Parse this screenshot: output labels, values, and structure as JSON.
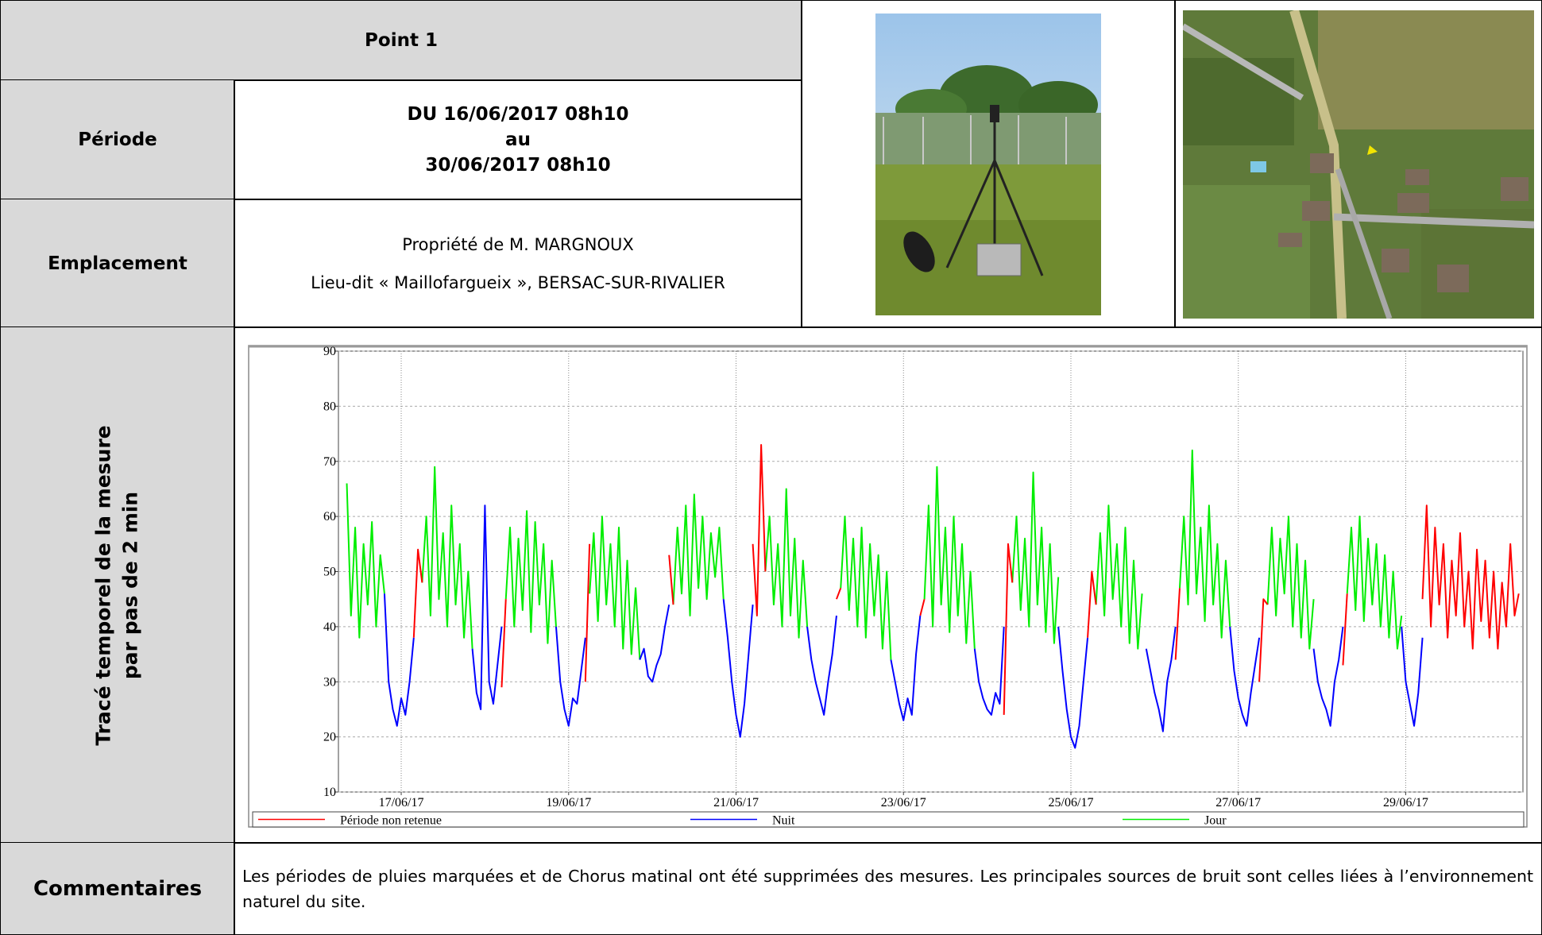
{
  "title": "Point 1",
  "period": {
    "label": "Période",
    "lines": [
      "DU 16/06/2017 08h10",
      "au",
      "30/06/2017 08h10"
    ]
  },
  "location": {
    "label": "Emplacement",
    "lines": [
      "Propriété de M. MARGNOUX",
      "Lieu-dit « Maillofargueix », BERSAC-SUR-RIVALIER"
    ]
  },
  "chart_label": {
    "lines": [
      "Tracé temporel de la mesure",
      "par pas de 2 min"
    ]
  },
  "chart_data": {
    "type": "line",
    "xlim": [
      0.25,
      14.4
    ],
    "xticks": [
      {
        "value": 1,
        "label": "17/06/17"
      },
      {
        "value": 3,
        "label": "19/06/17"
      },
      {
        "value": 5,
        "label": "21/06/17"
      },
      {
        "value": 7,
        "label": "23/06/17"
      },
      {
        "value": 9,
        "label": "25/06/17"
      },
      {
        "value": 11,
        "label": "27/06/17"
      },
      {
        "value": 13,
        "label": "29/06/17"
      }
    ],
    "ylim": [
      10,
      90
    ],
    "yticks": [
      10,
      20,
      30,
      40,
      50,
      60,
      70,
      80,
      90
    ],
    "grid": true,
    "legend": "bottom",
    "series": [
      {
        "name": "Période non retenue",
        "color": "#ff0000",
        "x": [
          1.15,
          1.2,
          1.25,
          null,
          2.2,
          2.25,
          null,
          3.2,
          3.25,
          null,
          4.2,
          4.25,
          null,
          5.2,
          5.25,
          5.3,
          5.35,
          null,
          6.2,
          6.25,
          null,
          7.2,
          7.25,
          null,
          8.2,
          8.25,
          8.3,
          null,
          9.2,
          9.25,
          9.3,
          null,
          10.25,
          10.3,
          null,
          11.25,
          11.3,
          11.35,
          null,
          12.25,
          12.3,
          null,
          13.2,
          13.25,
          13.3,
          13.35,
          13.4,
          13.45,
          13.5,
          13.55,
          13.6,
          13.65,
          13.7,
          13.75,
          13.8,
          13.85,
          13.9,
          13.95,
          14,
          14.05,
          14.1,
          14.15,
          14.2,
          14.25,
          14.3,
          14.35
        ],
        "values": [
          38,
          54,
          48,
          null,
          29,
          45,
          null,
          30,
          55,
          null,
          53,
          44,
          null,
          55,
          42,
          73,
          50,
          null,
          45,
          47,
          null,
          42,
          45,
          null,
          24,
          55,
          48,
          null,
          38,
          50,
          44,
          null,
          34,
          47,
          null,
          30,
          45,
          44,
          null,
          33,
          46,
          null,
          45,
          62,
          40,
          58,
          44,
          55,
          38,
          52,
          42,
          57,
          40,
          50,
          36,
          54,
          41,
          52,
          38,
          50,
          36,
          48,
          40,
          55,
          42,
          46
        ]
      },
      {
        "name": "Nuit",
        "color": "#0000ff",
        "x": [
          0.8,
          0.85,
          0.9,
          0.95,
          1,
          1.05,
          1.1,
          1.15,
          null,
          1.85,
          1.9,
          1.95,
          2,
          2.05,
          2.1,
          2.15,
          2.2,
          null,
          2.85,
          2.9,
          2.95,
          3,
          3.05,
          3.1,
          3.15,
          3.2,
          null,
          3.85,
          3.9,
          3.95,
          4,
          4.05,
          4.1,
          4.15,
          4.2,
          null,
          4.85,
          4.9,
          4.95,
          5,
          5.05,
          5.1,
          5.15,
          5.2,
          null,
          5.85,
          5.9,
          5.95,
          6,
          6.05,
          6.1,
          6.15,
          6.2,
          null,
          6.85,
          6.9,
          6.95,
          7,
          7.05,
          7.1,
          7.15,
          7.2,
          null,
          7.85,
          7.9,
          7.95,
          8,
          8.05,
          8.1,
          8.15,
          8.2,
          null,
          8.85,
          8.9,
          8.95,
          9,
          9.05,
          9.1,
          9.15,
          9.2,
          null,
          9.9,
          9.95,
          10,
          10.05,
          10.1,
          10.15,
          10.2,
          10.25,
          null,
          10.9,
          10.95,
          11,
          11.05,
          11.1,
          11.15,
          11.2,
          11.25,
          null,
          11.9,
          11.95,
          12,
          12.05,
          12.1,
          12.15,
          12.2,
          12.25,
          null,
          12.95,
          13,
          13.05,
          13.1,
          13.15,
          13.2
        ],
        "values": [
          46,
          30,
          25,
          22,
          27,
          24,
          30,
          38,
          null,
          36,
          28,
          25,
          62,
          30,
          26,
          33,
          40,
          null,
          40,
          30,
          25,
          22,
          27,
          26,
          32,
          38,
          null,
          34,
          36,
          31,
          30,
          33,
          35,
          40,
          44,
          null,
          45,
          38,
          30,
          24,
          20,
          26,
          35,
          44,
          null,
          40,
          34,
          30,
          27,
          24,
          30,
          35,
          42,
          null,
          34,
          30,
          26,
          23,
          27,
          24,
          35,
          42,
          null,
          36,
          30,
          27,
          25,
          24,
          28,
          26,
          40,
          null,
          40,
          32,
          25,
          20,
          18,
          22,
          30,
          38,
          null,
          36,
          32,
          28,
          25,
          21,
          30,
          34,
          40,
          null,
          40,
          32,
          27,
          24,
          22,
          28,
          33,
          38,
          null,
          36,
          30,
          27,
          25,
          22,
          30,
          34,
          40,
          null,
          40,
          30,
          26,
          22,
          28,
          38
        ]
      },
      {
        "name": "Jour",
        "color": "#00ee00",
        "x": [
          0.35,
          0.4,
          0.45,
          0.5,
          0.55,
          0.6,
          0.65,
          0.7,
          0.75,
          0.8,
          null,
          1.25,
          1.3,
          1.35,
          1.4,
          1.45,
          1.5,
          1.55,
          1.6,
          1.65,
          1.7,
          1.75,
          1.8,
          1.85,
          null,
          2.25,
          2.3,
          2.35,
          2.4,
          2.45,
          2.5,
          2.55,
          2.6,
          2.65,
          2.7,
          2.75,
          2.8,
          2.85,
          null,
          3.25,
          3.3,
          3.35,
          3.4,
          3.45,
          3.5,
          3.55,
          3.6,
          3.65,
          3.7,
          3.75,
          3.8,
          3.85,
          null,
          4.25,
          4.3,
          4.35,
          4.4,
          4.45,
          4.5,
          4.55,
          4.6,
          4.65,
          4.7,
          4.75,
          4.8,
          4.85,
          null,
          5.35,
          5.4,
          5.45,
          5.5,
          5.55,
          5.6,
          5.65,
          5.7,
          5.75,
          5.8,
          5.85,
          null,
          6.25,
          6.3,
          6.35,
          6.4,
          6.45,
          6.5,
          6.55,
          6.6,
          6.65,
          6.7,
          6.75,
          6.8,
          6.85,
          null,
          7.25,
          7.3,
          7.35,
          7.4,
          7.45,
          7.5,
          7.55,
          7.6,
          7.65,
          7.7,
          7.75,
          7.8,
          7.85,
          null,
          8.3,
          8.35,
          8.4,
          8.45,
          8.5,
          8.55,
          8.6,
          8.65,
          8.7,
          8.75,
          8.8,
          8.85,
          null,
          9.3,
          9.35,
          9.4,
          9.45,
          9.5,
          9.55,
          9.6,
          9.65,
          9.7,
          9.75,
          9.8,
          9.85,
          null,
          10.3,
          10.35,
          10.4,
          10.45,
          10.5,
          10.55,
          10.6,
          10.65,
          10.7,
          10.75,
          10.8,
          10.85,
          10.9,
          null,
          11.35,
          11.4,
          11.45,
          11.5,
          11.55,
          11.6,
          11.65,
          11.7,
          11.75,
          11.8,
          11.85,
          11.9,
          null,
          12.3,
          12.35,
          12.4,
          12.45,
          12.5,
          12.55,
          12.6,
          12.65,
          12.7,
          12.75,
          12.8,
          12.85,
          12.9,
          12.95
        ],
        "values": [
          66,
          42,
          58,
          38,
          55,
          44,
          59,
          40,
          53,
          46,
          null,
          48,
          60,
          42,
          69,
          45,
          57,
          40,
          62,
          44,
          55,
          38,
          50,
          36,
          null,
          45,
          58,
          40,
          56,
          43,
          61,
          39,
          59,
          44,
          55,
          37,
          52,
          40,
          null,
          46,
          57,
          41,
          60,
          44,
          55,
          40,
          58,
          36,
          52,
          35,
          47,
          34,
          null,
          44,
          58,
          46,
          62,
          42,
          64,
          47,
          60,
          45,
          57,
          49,
          58,
          45,
          null,
          50,
          60,
          44,
          55,
          40,
          65,
          42,
          56,
          38,
          52,
          40,
          null,
          47,
          60,
          43,
          56,
          40,
          58,
          38,
          55,
          42,
          53,
          36,
          50,
          34,
          null,
          45,
          62,
          40,
          69,
          44,
          58,
          39,
          60,
          42,
          55,
          37,
          50,
          36,
          null,
          48,
          60,
          43,
          56,
          40,
          68,
          44,
          58,
          39,
          55,
          37,
          49,
          null,
          44,
          57,
          42,
          62,
          45,
          55,
          40,
          58,
          37,
          52,
          36,
          46,
          null,
          47,
          60,
          44,
          72,
          46,
          58,
          41,
          62,
          44,
          55,
          38,
          52,
          40,
          null,
          44,
          58,
          42,
          56,
          46,
          60,
          40,
          55,
          38,
          52,
          36,
          45,
          null,
          46,
          58,
          43,
          60,
          41,
          56,
          44,
          55,
          40,
          53,
          38,
          50,
          36,
          42
        ]
      }
    ]
  },
  "comments": {
    "label": "Commentaires",
    "text": "Les périodes de pluies marquées et de Chorus matinal ont été supprimées des mesures. Les principales sources de bruit sont celles liées à l’environnement naturel du site."
  }
}
